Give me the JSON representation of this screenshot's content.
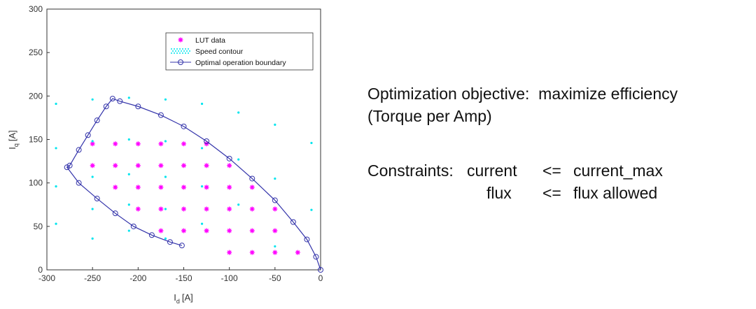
{
  "chart_data": {
    "type": "scatter",
    "xlabel": {
      "symbol": "I",
      "subscript": "d",
      "unit": "[A]"
    },
    "ylabel": {
      "symbol": "I",
      "subscript": "q",
      "unit": "[A]"
    },
    "xlim": [
      -300,
      0
    ],
    "ylim": [
      0,
      300
    ],
    "xticks": [
      -300,
      -250,
      -200,
      -150,
      -100,
      -50,
      0
    ],
    "yticks": [
      0,
      50,
      100,
      150,
      200,
      250,
      300
    ],
    "legend": "upper right",
    "series": [
      {
        "name": "LUT data",
        "color": "#ff00ff",
        "marker": "asterisk",
        "x": [
          -250,
          -225,
          -200,
          -175,
          -150,
          -125,
          -250,
          -225,
          -200,
          -175,
          -150,
          -125,
          -100,
          -225,
          -200,
          -175,
          -150,
          -125,
          -100,
          -75,
          -200,
          -175,
          -150,
          -125,
          -100,
          -75,
          -50,
          -175,
          -150,
          -125,
          -100,
          -75,
          -50,
          -100,
          -75,
          -50,
          -25
        ],
        "y": [
          145,
          145,
          145,
          145,
          145,
          145,
          120,
          120,
          120,
          120,
          120,
          120,
          120,
          95,
          95,
          95,
          95,
          95,
          95,
          95,
          70,
          70,
          70,
          70,
          70,
          70,
          70,
          45,
          45,
          45,
          45,
          45,
          45,
          20,
          20,
          20,
          20
        ]
      },
      {
        "name": "Speed contour",
        "color": "#00e5ee",
        "marker": "dot",
        "x": [
          -290,
          -250,
          -210,
          -170,
          -130,
          -90,
          -50,
          -10,
          -290,
          -250,
          -210,
          -170,
          -130,
          -90,
          -50,
          -10,
          -290,
          -250,
          -210,
          -170,
          -130,
          -90,
          -50,
          -290,
          -250,
          -210,
          -170,
          -130,
          -250,
          -210,
          -170
        ],
        "y": [
          191,
          196,
          198,
          196,
          191,
          181,
          167,
          146,
          140,
          148,
          150,
          148,
          140,
          127,
          105,
          69,
          96,
          107,
          110,
          107,
          96,
          75,
          27,
          53,
          70,
          75,
          70,
          53,
          36,
          45,
          36
        ]
      },
      {
        "name": "Optimal operation boundary",
        "color": "#3333aa",
        "marker": "circle",
        "line": true,
        "x": [
          0,
          -5,
          -15,
          -30,
          -50,
          -75,
          -100,
          -125,
          -150,
          -175,
          -200,
          -220,
          -228,
          -235,
          -245,
          -255,
          -265,
          -275,
          -278,
          -265,
          -245,
          -225,
          -205,
          -185,
          -165,
          -152
        ],
        "y": [
          0,
          15,
          35,
          55,
          80,
          105,
          128,
          148,
          165,
          178,
          188,
          194,
          197,
          188,
          172,
          155,
          138,
          120,
          118,
          100,
          82,
          65,
          50,
          40,
          32,
          28
        ]
      }
    ]
  },
  "notes": {
    "objective_label": "Optimization objective:",
    "objective": "maximize efficiency",
    "objective_detail": "(Torque per Amp)",
    "constraints_label": "Constraints:",
    "rows": [
      [
        "current",
        "<=",
        "current_max"
      ],
      [
        "flux",
        "<=",
        "flux allowed"
      ]
    ]
  }
}
